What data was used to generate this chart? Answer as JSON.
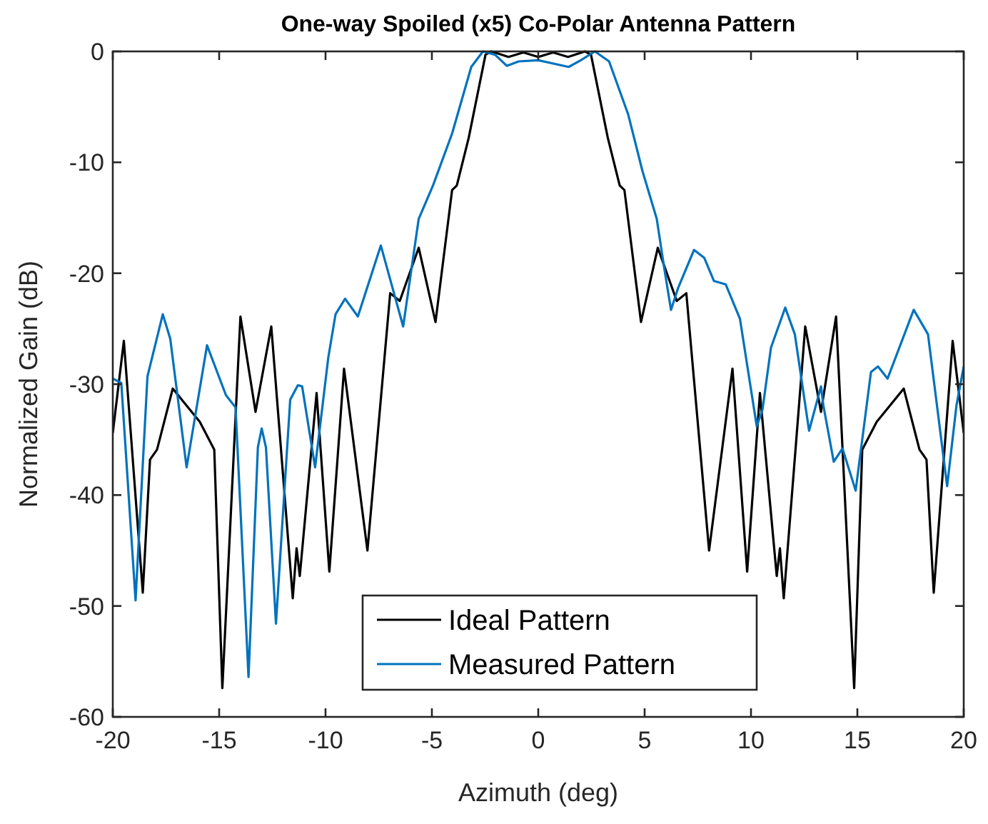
{
  "chart_data": {
    "type": "line",
    "title": "One-way Spoiled (x5) Co-Polar Antenna Pattern",
    "xlabel": "Azimuth (deg)",
    "ylabel": "Normalized Gain (dB)",
    "xlim": [
      -20,
      20
    ],
    "ylim": [
      -60,
      0
    ],
    "xticks": [
      -20,
      -15,
      -10,
      -5,
      0,
      5,
      10,
      15,
      20
    ],
    "yticks": [
      -60,
      -50,
      -40,
      -30,
      -20,
      -10,
      0
    ],
    "grid": false,
    "legend": "bottom",
    "marker": "none",
    "line_style": "solid",
    "series": [
      {
        "name": "Ideal Pattern",
        "color": "#000000",
        "x": [
          -20,
          -19.48,
          -18.59,
          -18.25,
          -17.92,
          -17.18,
          -15.91,
          -15.23,
          -14.85,
          -14.0,
          -13.29,
          -12.55,
          -11.54,
          -11.36,
          -11.21,
          -10.42,
          -9.82,
          -9.13,
          -8.03,
          -6.96,
          -6.51,
          -5.62,
          -4.83,
          -4.05,
          -3.83,
          -3.27,
          -2.48,
          -2.2,
          -1.4,
          -0.7,
          0,
          0.7,
          1.4,
          2.2,
          2.48,
          3.27,
          3.83,
          4.05,
          4.83,
          5.62,
          6.51,
          6.96,
          8.03,
          9.13,
          9.82,
          10.42,
          11.21,
          11.36,
          11.54,
          12.55,
          13.29,
          14.0,
          14.85,
          15.23,
          15.91,
          17.18,
          17.92,
          18.25,
          18.59,
          19.48,
          20
        ],
        "values": [
          -34.4,
          -26.1,
          -48.8,
          -36.8,
          -35.9,
          -30.4,
          -33.4,
          -35.9,
          -57.4,
          -23.9,
          -32.5,
          -24.8,
          -49.3,
          -44.8,
          -47.3,
          -30.8,
          -46.9,
          -28.6,
          -45.0,
          -21.8,
          -22.5,
          -17.7,
          -24.4,
          -12.5,
          -12.1,
          -7.8,
          -0.3,
          0,
          -0.5,
          -0.1,
          -0.5,
          -0.1,
          -0.5,
          0,
          -0.3,
          -7.8,
          -12.1,
          -12.5,
          -24.4,
          -17.7,
          -22.5,
          -21.8,
          -45.0,
          -28.6,
          -46.9,
          -30.8,
          -47.3,
          -44.8,
          -49.3,
          -24.8,
          -32.5,
          -23.9,
          -57.4,
          -35.9,
          -33.4,
          -30.4,
          -35.9,
          -36.8,
          -48.8,
          -26.1,
          -34.4
        ]
      },
      {
        "name": "Measured Pattern",
        "color": "#0072bd",
        "x": [
          -20,
          -19.6,
          -18.93,
          -18.37,
          -17.65,
          -17.3,
          -16.53,
          -15.57,
          -14.68,
          -14.23,
          -13.62,
          -13.18,
          -13.0,
          -12.8,
          -12.33,
          -11.66,
          -11.3,
          -11.1,
          -10.49,
          -9.87,
          -9.53,
          -9.08,
          -8.48,
          -7.4,
          -6.35,
          -5.62,
          -4.95,
          -4.05,
          -3.15,
          -2.6,
          -2.03,
          -1.48,
          -0.92,
          0,
          1.43,
          2.0,
          2.66,
          3.33,
          4.23,
          4.9,
          5.57,
          5.91,
          6.24,
          6.58,
          7.32,
          7.8,
          8.26,
          8.81,
          9.48,
          10.27,
          10.54,
          10.94,
          11.61,
          12.06,
          12.73,
          13.29,
          13.4,
          13.89,
          14.3,
          14.92,
          15.64,
          15.97,
          16.42,
          17.65,
          18.32,
          19.22,
          19.66,
          20
        ],
        "values": [
          -29.5,
          -29.9,
          -49.5,
          -29.3,
          -23.7,
          -25.9,
          -37.5,
          -26.5,
          -31.0,
          -32.1,
          -56.4,
          -35.7,
          -34.0,
          -35.7,
          -51.6,
          -31.4,
          -30.1,
          -30.2,
          -37.5,
          -27.6,
          -23.7,
          -22.3,
          -23.9,
          -17.5,
          -24.8,
          -15.1,
          -12.1,
          -7.4,
          -1.4,
          0,
          -0.3,
          -1.3,
          -0.9,
          -0.8,
          -1.4,
          -0.8,
          0,
          -0.9,
          -5.7,
          -10.8,
          -15.1,
          -19.4,
          -23.3,
          -21.3,
          -17.9,
          -18.6,
          -20.7,
          -21.0,
          -24.1,
          -33.8,
          -32.3,
          -26.7,
          -23.1,
          -25.5,
          -34.2,
          -30.2,
          -31.9,
          -37.0,
          -35.8,
          -39.6,
          -28.9,
          -28.4,
          -29.5,
          -23.3,
          -25.5,
          -39.2,
          -31.9,
          -28.4
        ]
      }
    ]
  }
}
